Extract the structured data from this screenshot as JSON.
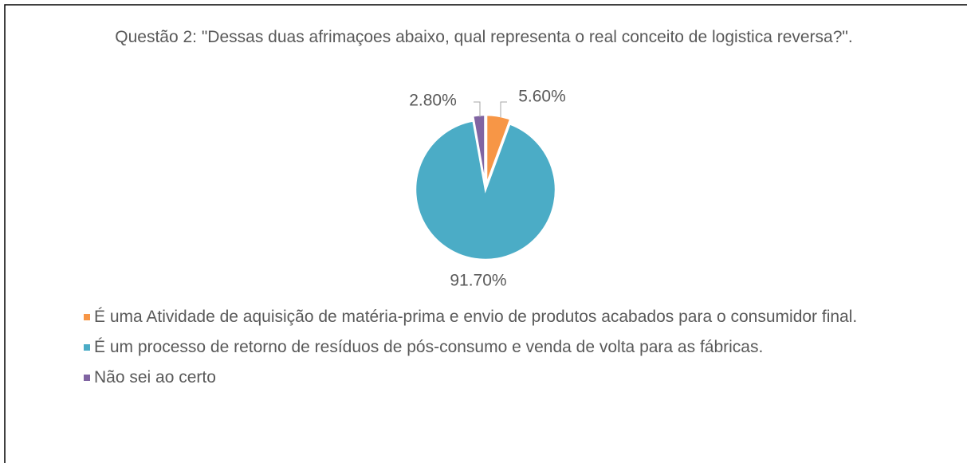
{
  "chart_data": {
    "type": "pie",
    "title": "Questão 2: \"Dessas duas afrimaçoes abaixo, qual representa o real conceito de logistica reversa?\".",
    "categories": [
      "É uma Atividade de aquisição de matéria-prima e envio de produtos acabados para o consumidor final.",
      "É um processo de retorno de resíduos de pós-consumo e venda de volta para as fábricas.",
      "Não sei ao certo"
    ],
    "values": [
      5.6,
      91.7,
      2.8
    ],
    "value_labels": [
      "5.60%",
      "91.70%",
      "2.80%"
    ],
    "colors": [
      "#f79646",
      "#4bacc6",
      "#8064a2"
    ],
    "legend": "bottom"
  }
}
